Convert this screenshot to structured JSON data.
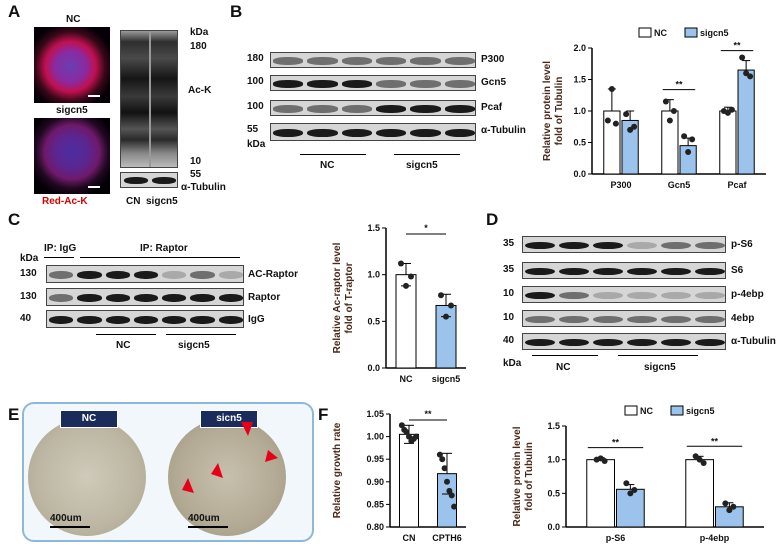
{
  "panels": {
    "A": "A",
    "B": "B",
    "C": "C",
    "D": "D",
    "E": "E",
    "F": "F"
  },
  "panelA": {
    "img1_label": "NC",
    "img2_label": "sigcn5",
    "stain_label": "Red-Ac-K",
    "kda": "kDa",
    "marker_top": "180",
    "marker_mid": "10",
    "marker_low": "55",
    "band_label": "Ac-K",
    "loading_label": "α-Tubulin",
    "lane_labels": "CN  sigcn5"
  },
  "panelB": {
    "markers": [
      "180",
      "100",
      "100",
      "55"
    ],
    "kda": "kDa",
    "rows": [
      "P300",
      "Gcn5",
      "Pcaf",
      "α-Tubulin"
    ],
    "group_nc": "NC",
    "group_si": "sigcn5"
  },
  "panelC": {
    "kda": "kDa",
    "ip_igg": "IP: IgG",
    "ip_raptor": "IP: Raptor",
    "markers": [
      "130",
      "130",
      "40"
    ],
    "rows": [
      "AC-Raptor",
      "Raptor",
      "IgG"
    ],
    "group_nc": "NC",
    "group_si": "sigcn5"
  },
  "panelD": {
    "markers": [
      "35",
      "35",
      "10",
      "10",
      "40"
    ],
    "kda": "kDa",
    "rows": [
      "p-S6",
      "S6",
      "p-4ebp",
      "4ebp",
      "α-Tubulin"
    ],
    "group_nc": "NC",
    "group_si": "sigcn5"
  },
  "panelE": {
    "label_nc": "NC",
    "label_si": "sicn5",
    "scale1": "400um",
    "scale2": "400um"
  },
  "colors": {
    "nc_bar": "#ffffff",
    "si_bar": "#9cc3ec",
    "arrow": "#e8001b",
    "label_box": "#1b2c5c",
    "frame": "#8fb7d8"
  },
  "chart_data": [
    {
      "id": "chartB",
      "type": "bar",
      "ylabel": "Relative protein level\nfold of Tubulin",
      "ylim": [
        0,
        2.0
      ],
      "yticks": [
        "0.0",
        "0.5",
        "1.0",
        "1.5",
        "2.0"
      ],
      "categories": [
        "P300",
        "Gcn5",
        "Pcaf"
      ],
      "legend": [
        "NC",
        "sigcn5"
      ],
      "legend_position": "top",
      "series": [
        {
          "name": "NC",
          "values": [
            1.0,
            1.0,
            1.0
          ],
          "err": [
            0.35,
            0.18,
            0.06
          ],
          "points": [
            [
              0.85,
              1.35,
              0.8
            ],
            [
              1.15,
              0.85,
              1.0
            ],
            [
              1.0,
              0.97,
              1.02
            ]
          ]
        },
        {
          "name": "sigcn5",
          "values": [
            0.85,
            0.45,
            1.65
          ],
          "err": [
            0.15,
            0.12,
            0.15
          ],
          "points": [
            [
              0.95,
              0.7,
              0.75
            ],
            [
              0.6,
              0.35,
              0.55
            ],
            [
              1.85,
              1.6,
              1.55
            ]
          ]
        }
      ],
      "significance": [
        "",
        "**",
        "**"
      ]
    },
    {
      "id": "chartC",
      "type": "bar",
      "ylabel": "Relative Ac-raptor level\nfold of T-raptor",
      "ylim": [
        0,
        1.5
      ],
      "yticks": [
        "0.0",
        "0.5",
        "1.0",
        "1.5"
      ],
      "categories": [
        "NC",
        "sigcn5"
      ],
      "values": [
        1.0,
        0.67
      ],
      "err": [
        0.12,
        0.12
      ],
      "points": [
        [
          1.12,
          0.88,
          0.98
        ],
        [
          0.78,
          0.55,
          0.67
        ]
      ],
      "significance": "*"
    },
    {
      "id": "chartF",
      "type": "bar",
      "ylabel": "Relative growth rate",
      "ylim": [
        0.8,
        1.05
      ],
      "yticks": [
        "0.80",
        "0.85",
        "0.90",
        "0.95",
        "1.00",
        "1.05"
      ],
      "categories": [
        "CN",
        "CPTH6"
      ],
      "values": [
        1.005,
        0.918
      ],
      "err": [
        0.02,
        0.045
      ],
      "points": [
        [
          1.025,
          1.015,
          1.01,
          1.0,
          0.99,
          0.995,
          1.0
        ],
        [
          0.96,
          0.95,
          0.93,
          0.9,
          0.88,
          0.87,
          0.845
        ]
      ],
      "significance": "**"
    },
    {
      "id": "chartD",
      "type": "bar",
      "ylabel": "Relative protein level\nfold of Tubulin",
      "ylim": [
        0,
        1.5
      ],
      "yticks": [
        "0.0",
        "0.5",
        "1.0",
        "1.5"
      ],
      "categories": [
        "p-S6",
        "p-4ebp"
      ],
      "legend": [
        "NC",
        "sigcn5"
      ],
      "legend_position": "top",
      "series": [
        {
          "name": "NC",
          "values": [
            1.0,
            1.0
          ],
          "err": [
            0.03,
            0.05
          ],
          "points": [
            [
              1.0,
              1.02,
              0.98
            ],
            [
              1.05,
              1.0,
              0.95
            ]
          ]
        },
        {
          "name": "sigcn5",
          "values": [
            0.56,
            0.3
          ],
          "err": [
            0.07,
            0.06
          ],
          "points": [
            [
              0.65,
              0.5,
              0.55
            ],
            [
              0.35,
              0.25,
              0.3
            ]
          ]
        }
      ],
      "significance": [
        "**",
        "**"
      ]
    }
  ]
}
